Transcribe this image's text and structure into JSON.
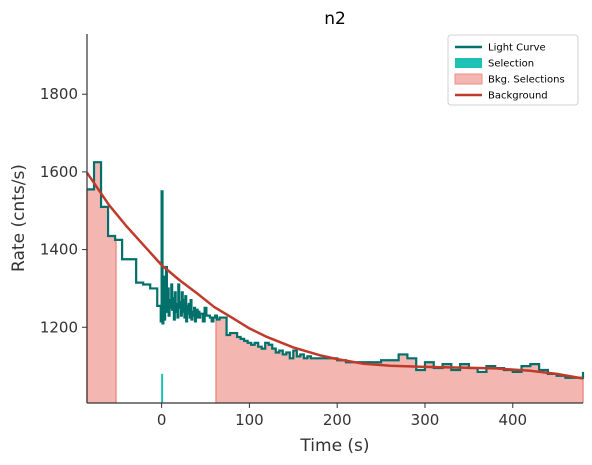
{
  "chart_data": {
    "type": "line",
    "title": "n2",
    "xlabel": "Time (s)",
    "ylabel": "Rate (cnts/s)",
    "xlim": [
      -85,
      480
    ],
    "ylim": [
      1005,
      1955
    ],
    "xticks": [
      0,
      100,
      200,
      300,
      400
    ],
    "yticks": [
      1200,
      1400,
      1600,
      1800
    ],
    "grid": false,
    "legend_position": "top-right",
    "colors": {
      "light_curve": "#00706b",
      "selection": "#1cc2b3",
      "bkg_selection_fill": "#f4b6b0",
      "bkg_selection_edge": "#ec8e86",
      "background": "#c03a2b"
    },
    "legend": [
      {
        "label": "Light Curve",
        "kind": "line",
        "color_key": "light_curve"
      },
      {
        "label": "Selection",
        "kind": "patch",
        "color_key": "selection"
      },
      {
        "label": "Bkg. Selections",
        "kind": "patch",
        "color_key": "bkg_selection_fill"
      },
      {
        "label": "Background",
        "kind": "line",
        "color_key": "background"
      }
    ],
    "bkg_selections": [
      [
        -85,
        -52
      ],
      [
        62,
        480
      ]
    ],
    "selection": [
      0,
      2
    ],
    "series": [
      {
        "name": "Light Curve",
        "style": "step",
        "x": [
          -85,
          -77,
          -69,
          -61,
          -53,
          -45,
          -37,
          -29,
          -21,
          -13,
          -5,
          -1,
          0,
          1,
          2,
          3,
          4,
          5,
          6,
          7,
          8,
          9,
          10,
          11,
          12,
          13,
          14,
          15,
          16,
          17,
          18,
          19,
          20,
          21,
          22,
          23,
          24,
          25,
          26,
          27,
          28,
          29,
          30,
          31,
          32,
          33,
          34,
          35,
          36,
          37,
          38,
          39,
          40,
          41,
          42,
          43,
          44,
          45,
          47,
          49,
          51,
          53,
          55,
          57,
          59,
          61,
          63,
          66,
          70,
          74,
          78,
          82,
          86,
          90,
          94,
          98,
          102,
          106,
          110,
          114,
          118,
          122,
          126,
          130,
          134,
          138,
          142,
          146,
          150,
          154,
          158,
          162,
          166,
          170,
          180,
          190,
          200,
          210,
          220,
          230,
          240,
          250,
          260,
          270,
          280,
          290,
          300,
          310,
          320,
          330,
          340,
          350,
          360,
          370,
          380,
          390,
          400,
          410,
          420,
          430,
          440,
          450,
          460,
          470,
          480
        ],
        "y": [
          1555,
          1625,
          1510,
          1435,
          1425,
          1375,
          1375,
          1315,
          1310,
          1300,
          1255,
          1215,
          1550,
          1210,
          1330,
          1220,
          1285,
          1355,
          1240,
          1300,
          1230,
          1270,
          1250,
          1310,
          1245,
          1275,
          1220,
          1290,
          1240,
          1260,
          1225,
          1310,
          1265,
          1250,
          1230,
          1290,
          1240,
          1270,
          1225,
          1280,
          1215,
          1255,
          1235,
          1260,
          1225,
          1270,
          1220,
          1240,
          1230,
          1250,
          1215,
          1235,
          1245,
          1225,
          1240,
          1225,
          1235,
          1235,
          1215,
          1250,
          1230,
          1230,
          1225,
          1215,
          1225,
          1230,
          1220,
          1225,
          1225,
          1180,
          1185,
          1185,
          1175,
          1170,
          1165,
          1160,
          1155,
          1160,
          1150,
          1145,
          1160,
          1155,
          1145,
          1135,
          1140,
          1130,
          1135,
          1120,
          1140,
          1125,
          1130,
          1120,
          1125,
          1120,
          1120,
          1120,
          1115,
          1110,
          1110,
          1110,
          1110,
          1115,
          1115,
          1130,
          1120,
          1090,
          1110,
          1095,
          1105,
          1090,
          1105,
          1095,
          1085,
          1100,
          1095,
          1090,
          1085,
          1100,
          1105,
          1090,
          1080,
          1075,
          1070,
          1070,
          1085
        ]
      },
      {
        "name": "Background",
        "style": "smooth",
        "x": [
          -85,
          -60,
          -40,
          -20,
          0,
          20,
          40,
          60,
          80,
          100,
          120,
          150,
          180,
          200,
          230,
          260,
          300,
          340,
          380,
          420,
          450,
          480
        ],
        "y": [
          1598,
          1515,
          1460,
          1410,
          1360,
          1322,
          1288,
          1252,
          1225,
          1197,
          1175,
          1148,
          1128,
          1118,
          1106,
          1101,
          1098,
          1096,
          1094,
          1088,
          1080,
          1068
        ]
      }
    ]
  }
}
